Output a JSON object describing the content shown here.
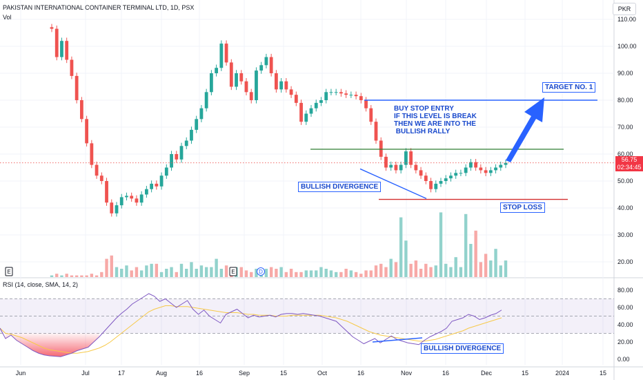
{
  "header": {
    "symbol_line": "PAKISTAN INTERNATIONAL CONTAINER TERMINAL LTD, 1D, PSX",
    "volume_label": "Vol",
    "rsi_label": "RSI (14, close, SMA, 14, 2)",
    "currency": "PKR"
  },
  "last_price": {
    "value": "56.75",
    "countdown": "02:34:45"
  },
  "annotations": {
    "target": "TARGET NO. 1",
    "buy_stop": "BUY STOP ENTRY\nIF THIS LEVEL IS BREAK\nTHEN WE ARE INTO THE\n BULLISH RALLY",
    "bullish_div_price": "BULLISH DIVERGENCE",
    "stop_loss": "STOP LOSS",
    "bullish_div_rsi": "BULLISH DIVERGENCE"
  },
  "event_markers": [
    "E",
    "E",
    "D"
  ],
  "colors": {
    "up": "#26a69a",
    "down": "#ef5350",
    "annotation": "#2962ff",
    "green_line": "#2e7d32",
    "red_line": "#d32f2f",
    "rsi_line": "#7e57c2",
    "rsi_ma": "#f7c948"
  },
  "chart_data": [
    {
      "type": "candlestick",
      "title": "PAKISTAN INTERNATIONAL CONTAINER TERMINAL LTD, 1D, PSX",
      "x_tick_labels": [
        "Jun",
        "Jul",
        "17",
        "Aug",
        "16",
        "Sep",
        "15",
        "Oct",
        "16",
        "Nov",
        "16",
        "Dec",
        "15",
        "2024",
        "15"
      ],
      "y_ticks": [
        "110.00",
        "100.00",
        "90.00",
        "80.00",
        "70.00",
        "60.00",
        "50.00",
        "40.00",
        "30.00",
        "20.00"
      ],
      "ylim": [
        15,
        112
      ],
      "horizontal_levels": {
        "target": 80.0,
        "buy_stop_entry": 61.8,
        "stop_loss": 43.2
      },
      "closes": [
        106.5,
        96,
        102,
        95,
        89,
        80,
        73,
        64,
        56,
        52,
        50,
        42,
        38,
        41,
        44,
        44.5,
        43.5,
        42,
        45,
        47,
        49,
        48,
        52,
        55,
        60,
        58,
        63,
        65,
        69,
        73,
        77,
        83,
        90,
        92,
        101,
        94,
        85,
        90,
        87,
        83,
        80,
        91,
        93,
        96,
        90,
        84,
        87,
        84,
        82,
        79,
        72,
        75,
        77,
        79,
        80,
        83,
        83,
        83,
        82.5,
        82,
        82,
        81.5,
        80,
        77,
        72,
        65,
        59,
        55,
        56,
        54,
        56,
        61,
        56,
        54,
        52,
        50,
        47,
        49,
        50,
        51,
        52,
        53,
        53,
        55,
        57,
        55,
        54,
        53,
        54,
        55,
        56,
        56.75
      ],
      "volumes": [
        1,
        2,
        1,
        2,
        1,
        1,
        1,
        1,
        2,
        1,
        3,
        11,
        13,
        6,
        5,
        7,
        4,
        6,
        4,
        7,
        8,
        8,
        3,
        5,
        6,
        3,
        8,
        5,
        9,
        5,
        7,
        6,
        6,
        11,
        5,
        7,
        5,
        6,
        6,
        4,
        3,
        5,
        4,
        5,
        6,
        5,
        6,
        3,
        5,
        3,
        3,
        4,
        4,
        4,
        6,
        5,
        4,
        3,
        3,
        5,
        4,
        3,
        2,
        4,
        4,
        7,
        8,
        6,
        11,
        9,
        36,
        22,
        8,
        10,
        5,
        8,
        6,
        7,
        39,
        8,
        6,
        12,
        6,
        38,
        20,
        28,
        9,
        14,
        10,
        17,
        7,
        10
      ]
    },
    {
      "type": "line",
      "title": "RSI (14, close, SMA, 14, 2)",
      "y_ticks": [
        "80.00",
        "60.00",
        "40.00",
        "20.00",
        "0.00"
      ],
      "ylim": [
        -3,
        90
      ],
      "bands": {
        "upper": 70,
        "middle": 50,
        "lower": 30
      },
      "series": [
        {
          "values": [
            36,
            24,
            28,
            22,
            18,
            14,
            10,
            7,
            5,
            4,
            3.5,
            3,
            5,
            7,
            10,
            12,
            14,
            20,
            26,
            33,
            40,
            47,
            53,
            58,
            64,
            68,
            72,
            76,
            73,
            67,
            70,
            65,
            60,
            64,
            68,
            58,
            52,
            57,
            50,
            46,
            42,
            52,
            55,
            58,
            53,
            48,
            51,
            49,
            50,
            51,
            49,
            52,
            53,
            53,
            52,
            53,
            52,
            51,
            50,
            48,
            46,
            44,
            38,
            32,
            26,
            22,
            18,
            21,
            24,
            19,
            23,
            27,
            23,
            21,
            19,
            18,
            17,
            22,
            26,
            29,
            32,
            36,
            44,
            46,
            48,
            52,
            50,
            46,
            48,
            51,
            53,
            57
          ]
        },
        {
          "values": [
            36,
            30,
            29,
            27,
            25,
            22,
            19,
            16,
            13,
            11,
            10,
            9,
            8,
            7,
            7,
            8,
            9,
            11,
            13,
            16,
            20,
            25,
            30,
            35,
            40,
            45,
            50,
            55,
            58,
            60,
            62,
            62,
            61,
            61,
            61,
            60,
            59,
            58,
            57,
            56,
            55,
            54,
            54,
            54,
            53,
            52,
            52,
            51,
            51,
            51,
            50,
            50,
            50,
            51,
            51,
            51,
            51,
            51,
            51,
            50,
            49,
            48,
            46,
            44,
            41,
            38,
            35,
            32,
            30,
            28,
            27,
            26,
            25,
            24,
            23,
            22,
            21,
            21,
            22,
            23,
            25,
            27,
            29,
            31,
            33,
            36,
            38,
            40,
            42,
            44,
            46,
            48
          ]
        }
      ]
    }
  ]
}
